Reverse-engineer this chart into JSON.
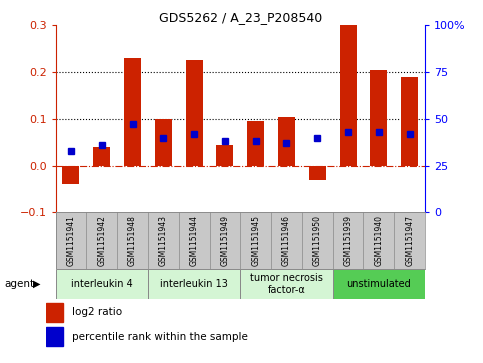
{
  "title": "GDS5262 / A_23_P208540",
  "samples": [
    "GSM1151941",
    "GSM1151942",
    "GSM1151948",
    "GSM1151943",
    "GSM1151944",
    "GSM1151949",
    "GSM1151945",
    "GSM1151946",
    "GSM1151950",
    "GSM1151939",
    "GSM1151940",
    "GSM1151947"
  ],
  "log2_ratio": [
    -0.04,
    0.04,
    0.23,
    0.1,
    0.225,
    0.045,
    0.095,
    0.105,
    -0.03,
    0.3,
    0.205,
    0.19
  ],
  "percentile": [
    33,
    36,
    47,
    40,
    42,
    38,
    38,
    37,
    40,
    43,
    43,
    42
  ],
  "agents": [
    {
      "label": "interleukin 4",
      "start": 0,
      "end": 3,
      "color": "#d4f5d4"
    },
    {
      "label": "interleukin 13",
      "start": 3,
      "end": 6,
      "color": "#d4f5d4"
    },
    {
      "label": "tumor necrosis\nfactor-α",
      "start": 6,
      "end": 9,
      "color": "#d4f5d4"
    },
    {
      "label": "unstimulated",
      "start": 9,
      "end": 12,
      "color": "#55cc55"
    }
  ],
  "bar_color": "#cc2200",
  "dot_color": "#0000cc",
  "ylim": [
    -0.1,
    0.3
  ],
  "y2lim": [
    0,
    100
  ],
  "yticks": [
    -0.1,
    0.0,
    0.1,
    0.2,
    0.3
  ],
  "y2ticks": [
    0,
    25,
    50,
    75,
    100
  ],
  "y2ticklabels": [
    "0",
    "25",
    "50",
    "75",
    "100%"
  ],
  "hline_y": 0.0,
  "dotted_lines": [
    0.1,
    0.2
  ],
  "legend_bar_label": "log2 ratio",
  "legend_dot_label": "percentile rank within the sample",
  "agent_label": "agent",
  "sample_bg": "#c8c8c8",
  "sample_border": "#888888"
}
